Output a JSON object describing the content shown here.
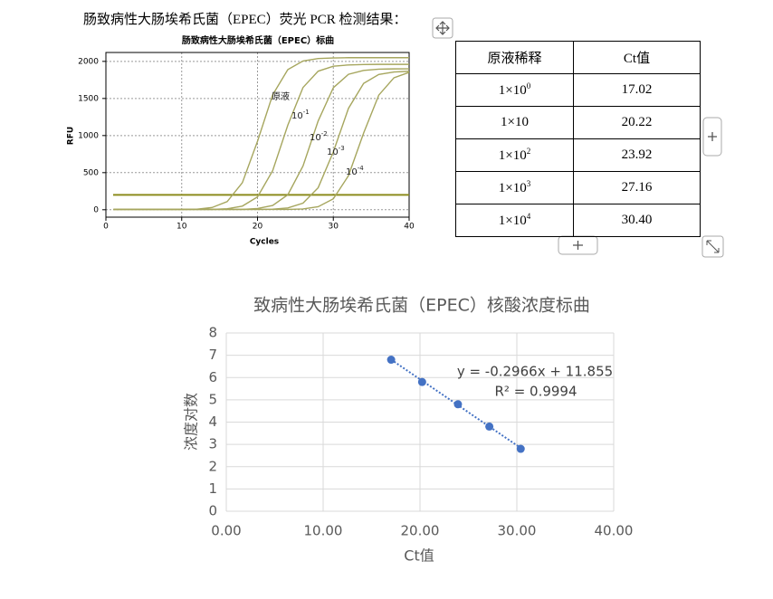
{
  "heading": "肠致病性大肠埃希氏菌（EPEC）荧光 PCR 检测结果：",
  "chart_data": [
    {
      "type": "line",
      "title": "肠致病性大肠埃希氏菌（EPEC）标曲",
      "x_label": "Cycles",
      "y_label": "RFU",
      "xlim": [
        0,
        40
      ],
      "ylim": [
        -100,
        2120
      ],
      "xticks": [
        0,
        10,
        20,
        30,
        40
      ],
      "yticks": [
        0,
        500,
        1000,
        1500,
        2000
      ],
      "grid": true,
      "color": "#a6a65e",
      "threshold": 200,
      "threshold_color": "#8c8c1e",
      "x": [
        1,
        2,
        4,
        6,
        8,
        10,
        12,
        14,
        16,
        18,
        20,
        22,
        24,
        26,
        28,
        30,
        32,
        34,
        36,
        38,
        40
      ],
      "series": [
        {
          "name": "原液",
          "values": [
            5,
            5,
            5,
            5,
            5,
            5,
            8,
            30,
            110,
            364,
            923,
            1550,
            1890,
            2005,
            2038,
            2046,
            2050,
            2050,
            2050,
            2050,
            2050
          ]
        },
        {
          "name": "10",
          "exponent": "-1",
          "values": [
            5,
            5,
            5,
            5,
            5,
            5,
            5,
            5,
            13,
            49,
            173,
            527,
            1141,
            1648,
            1868,
            1935,
            1952,
            1957,
            1960,
            1960,
            1960
          ]
        },
        {
          "name": "10",
          "exponent": "-2",
          "values": [
            5,
            5,
            5,
            5,
            5,
            5,
            5,
            5,
            5,
            5,
            16,
            58,
            202,
            589,
            1197,
            1645,
            1826,
            1879,
            1895,
            1899,
            1900
          ]
        },
        {
          "name": "10",
          "exponent": "-3",
          "values": [
            5,
            5,
            5,
            5,
            5,
            5,
            5,
            5,
            5,
            5,
            5,
            7,
            24,
            89,
            297,
            780,
            1367,
            1704,
            1824,
            1857,
            1867
          ]
        },
        {
          "name": "10",
          "exponent": "-4",
          "values": [
            5,
            5,
            5,
            5,
            5,
            5,
            5,
            5,
            5,
            5,
            5,
            5,
            5,
            11,
            41,
            147,
            459,
            1034,
            1546,
            1779,
            1852
          ]
        }
      ]
    },
    {
      "type": "scatter",
      "title": "致病性大肠埃希氏菌（EPEC）核酸浓度标曲",
      "x_label": "Ct值",
      "y_label": "浓度对数",
      "xlim": [
        0,
        40
      ],
      "ylim": [
        0,
        8
      ],
      "xticks": [
        {
          "value": 0,
          "label": "0.00"
        },
        {
          "value": 10,
          "label": "10.00"
        },
        {
          "value": 20,
          "label": "20.00"
        },
        {
          "value": 30,
          "label": "30.00"
        },
        {
          "value": 40,
          "label": "40.00"
        }
      ],
      "yticks": [
        0,
        1,
        2,
        3,
        4,
        5,
        6,
        7,
        8
      ],
      "grid": true,
      "color": "#4472c4",
      "x": [
        17.02,
        20.22,
        23.92,
        27.16,
        30.4
      ],
      "values": [
        6.8,
        5.8,
        4.8,
        3.8,
        2.8
      ],
      "trendline": {
        "slope": -0.2966,
        "intercept": 11.855,
        "equation": "y = -0.2966x + 11.855",
        "r_squared": "R² = 0.9994"
      }
    }
  ],
  "table": {
    "header": [
      "原液稀释",
      "Ct值"
    ],
    "rows": [
      {
        "dilution": "1×10",
        "exponent": "0",
        "ct": "17.02"
      },
      {
        "dilution": "1×10",
        "ct": "20.22"
      },
      {
        "dilution": "1×10",
        "exponent": "2",
        "ct": "23.92"
      },
      {
        "dilution": "1×10",
        "exponent": "3",
        "ct": "27.16"
      },
      {
        "dilution": "1×10",
        "exponent": "4",
        "ct": "30.40"
      }
    ]
  }
}
